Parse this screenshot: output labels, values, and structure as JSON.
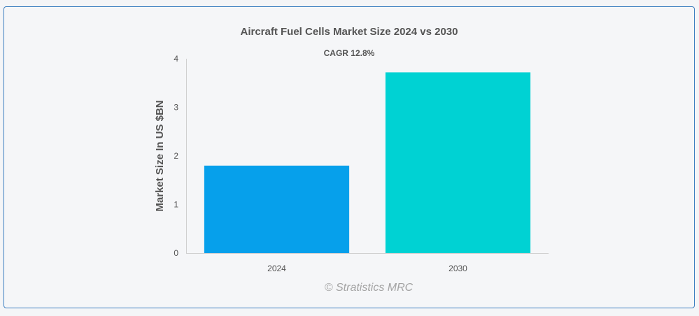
{
  "chart_data": {
    "type": "bar",
    "title": "Aircraft Fuel Cells Market Size 2024 vs 2030",
    "subtitle": "CAGR 12.8%",
    "ylabel": "Market Size In US $BN",
    "xlabel": "",
    "categories": [
      "2024",
      "2030"
    ],
    "values": [
      1.8,
      3.72
    ],
    "colors": [
      "#06a0eb",
      "#00d2d3"
    ],
    "ylim": [
      0,
      4
    ],
    "yticks": [
      "0",
      "1",
      "2",
      "3",
      "4"
    ],
    "grid": false
  },
  "credit": "© Stratistics MRC"
}
